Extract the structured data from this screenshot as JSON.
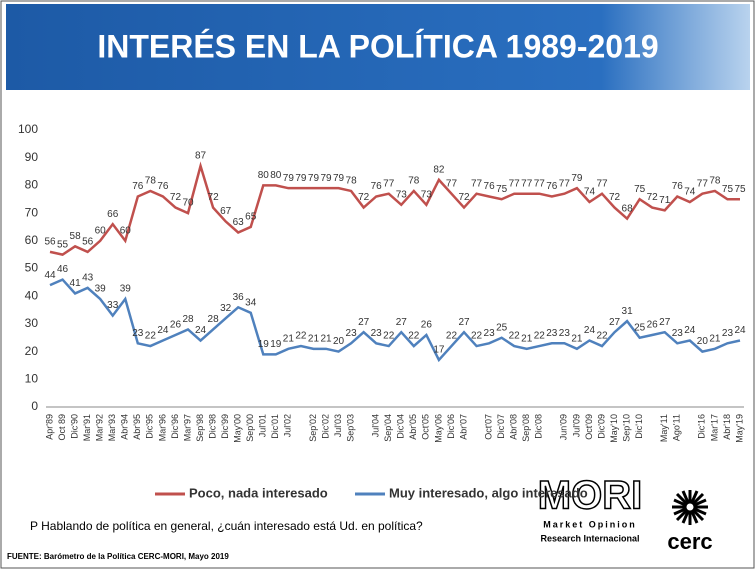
{
  "chart_data": {
    "type": "line",
    "title": "INTERÉS EN LA POLÍTICA  1989-2019",
    "categories": [
      "Apr'89",
      "Oct 89",
      "Dic'90",
      "Mar'91",
      "Mar'92",
      "Mar'93",
      "Abr'94",
      "Abr'95",
      "Dic'95",
      "Mar'96",
      "Dic'96",
      "Mar'97",
      "Sep'98",
      "Dic'98",
      "Dic'99",
      "May'00",
      "Sep'00",
      "Jul'01",
      "Dic'01",
      "Jul'02",
      null,
      "Sep'02",
      "Dic'02",
      "Jul'03",
      "Sep'03",
      null,
      "Jul'04",
      "Sep'04",
      "Dic'04",
      "Abr'05",
      "Oct'05",
      "May'06",
      "Dic'06",
      "Abr'07",
      null,
      "Oct'07",
      "Dic'07",
      "Abr'08",
      "Sep'08",
      "Dic'08",
      null,
      "Jun'09",
      "Jul'09",
      "Oct'09",
      "Dic'09",
      "May'10",
      "Sep'10",
      "Dic'10",
      null,
      "May'11",
      "Ago'11",
      null,
      "Dic'16",
      "Mar'17",
      "Abr'18",
      "May'19"
    ],
    "series": [
      {
        "name": "Poco, nada interesado",
        "color": "#c0504d",
        "values": [
          56,
          55,
          58,
          56,
          60,
          66,
          60,
          76,
          78,
          76,
          72,
          70,
          87,
          72,
          67,
          63,
          65,
          80,
          80,
          79,
          79,
          79,
          79,
          79,
          78,
          72,
          76,
          77,
          73,
          78,
          73,
          82,
          77,
          72,
          77,
          76,
          75,
          77,
          77,
          77,
          76,
          77,
          79,
          74,
          77,
          72,
          68,
          75,
          72,
          71,
          76,
          74,
          77,
          78,
          75,
          75
        ]
      },
      {
        "name": "Muy interesado, algo interesado",
        "color": "#4f81bd",
        "values": [
          44,
          46,
          41,
          43,
          39,
          33,
          39,
          23,
          22,
          24,
          26,
          28,
          24,
          28,
          32,
          36,
          34,
          19,
          19,
          21,
          22,
          21,
          21,
          20,
          23,
          27,
          23,
          22,
          27,
          22,
          26,
          17,
          22,
          27,
          22,
          23,
          25,
          22,
          21,
          22,
          23,
          23,
          21,
          24,
          22,
          27,
          31,
          25,
          26,
          27,
          23,
          24,
          20,
          21,
          23,
          24
        ]
      }
    ],
    "ylim": [
      0,
      100
    ],
    "yticks": [
      0,
      10,
      20,
      30,
      40,
      50,
      60,
      70,
      80,
      90,
      100
    ]
  },
  "question": "P Hablando de política en general, ¿cuán interesado está Ud. en política?",
  "source": "FUENTE: Barómetro de la Política CERC-MORI, Mayo 2019",
  "logos": {
    "mori": "MORI",
    "mori_line1": "Market Opinion",
    "mori_line2": "Research Internacional",
    "cerc": "cerc"
  }
}
